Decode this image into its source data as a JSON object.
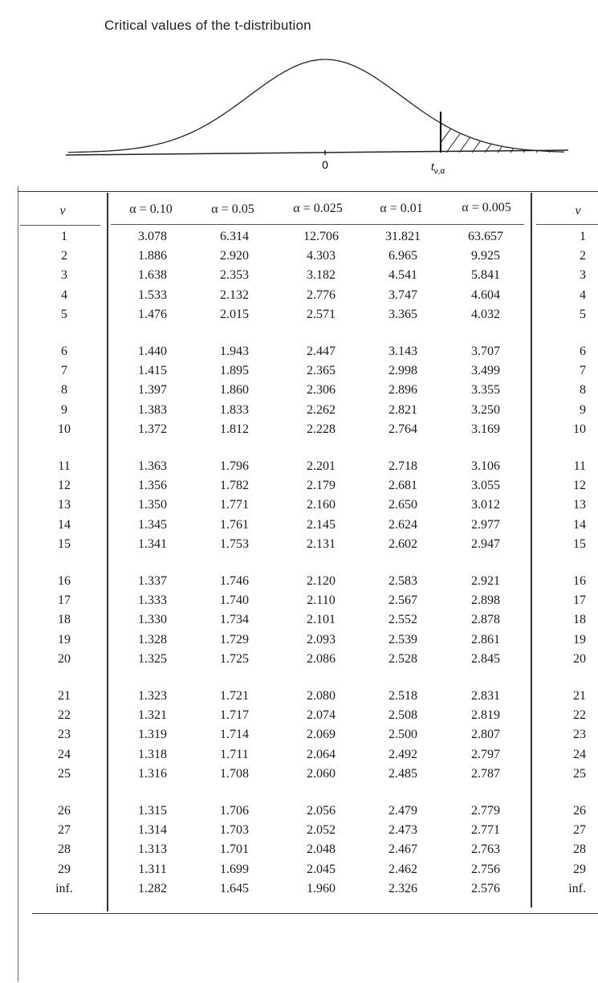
{
  "title": "Critical values of the t-distribution",
  "figure": {
    "zero_label": "0",
    "critical_label": "t",
    "critical_subscript": "ν,α"
  },
  "table": {
    "nu_header": "ν",
    "alpha_headers": [
      "α = 0.10",
      "α = 0.05",
      "α = 0.025",
      "α = 0.01",
      "α = 0.005"
    ],
    "rows": [
      [
        "1",
        "3.078",
        "6.314",
        "12.706",
        "31.821",
        "63.657"
      ],
      [
        "2",
        "1.886",
        "2.920",
        "4.303",
        "6.965",
        "9.925"
      ],
      [
        "3",
        "1.638",
        "2.353",
        "3.182",
        "4.541",
        "5.841"
      ],
      [
        "4",
        "1.533",
        "2.132",
        "2.776",
        "3.747",
        "4.604"
      ],
      [
        "5",
        "1.476",
        "2.015",
        "2.571",
        "3.365",
        "4.032"
      ],
      [
        "6",
        "1.440",
        "1.943",
        "2.447",
        "3.143",
        "3.707"
      ],
      [
        "7",
        "1.415",
        "1.895",
        "2.365",
        "2.998",
        "3.499"
      ],
      [
        "8",
        "1.397",
        "1.860",
        "2.306",
        "2.896",
        "3.355"
      ],
      [
        "9",
        "1.383",
        "1.833",
        "2.262",
        "2.821",
        "3.250"
      ],
      [
        "10",
        "1.372",
        "1.812",
        "2.228",
        "2.764",
        "3.169"
      ],
      [
        "11",
        "1.363",
        "1.796",
        "2.201",
        "2.718",
        "3.106"
      ],
      [
        "12",
        "1.356",
        "1.782",
        "2.179",
        "2.681",
        "3.055"
      ],
      [
        "13",
        "1.350",
        "1.771",
        "2.160",
        "2.650",
        "3.012"
      ],
      [
        "14",
        "1.345",
        "1.761",
        "2.145",
        "2.624",
        "2.977"
      ],
      [
        "15",
        "1.341",
        "1.753",
        "2.131",
        "2.602",
        "2.947"
      ],
      [
        "16",
        "1.337",
        "1.746",
        "2.120",
        "2.583",
        "2.921"
      ],
      [
        "17",
        "1.333",
        "1.740",
        "2.110",
        "2.567",
        "2.898"
      ],
      [
        "18",
        "1.330",
        "1.734",
        "2.101",
        "2.552",
        "2.878"
      ],
      [
        "19",
        "1.328",
        "1.729",
        "2.093",
        "2.539",
        "2.861"
      ],
      [
        "20",
        "1.325",
        "1.725",
        "2.086",
        "2.528",
        "2.845"
      ],
      [
        "21",
        "1.323",
        "1.721",
        "2.080",
        "2.518",
        "2.831"
      ],
      [
        "22",
        "1.321",
        "1.717",
        "2.074",
        "2.508",
        "2.819"
      ],
      [
        "23",
        "1.319",
        "1.714",
        "2.069",
        "2.500",
        "2.807"
      ],
      [
        "24",
        "1.318",
        "1.711",
        "2.064",
        "2.492",
        "2.797"
      ],
      [
        "25",
        "1.316",
        "1.708",
        "2.060",
        "2.485",
        "2.787"
      ],
      [
        "26",
        "1.315",
        "1.706",
        "2.056",
        "2.479",
        "2.779"
      ],
      [
        "27",
        "1.314",
        "1.703",
        "2.052",
        "2.473",
        "2.771"
      ],
      [
        "28",
        "1.313",
        "1.701",
        "2.048",
        "2.467",
        "2.763"
      ],
      [
        "29",
        "1.311",
        "1.699",
        "2.045",
        "2.462",
        "2.756"
      ],
      [
        "inf.",
        "1.282",
        "1.645",
        "1.960",
        "2.326",
        "2.576"
      ]
    ]
  }
}
